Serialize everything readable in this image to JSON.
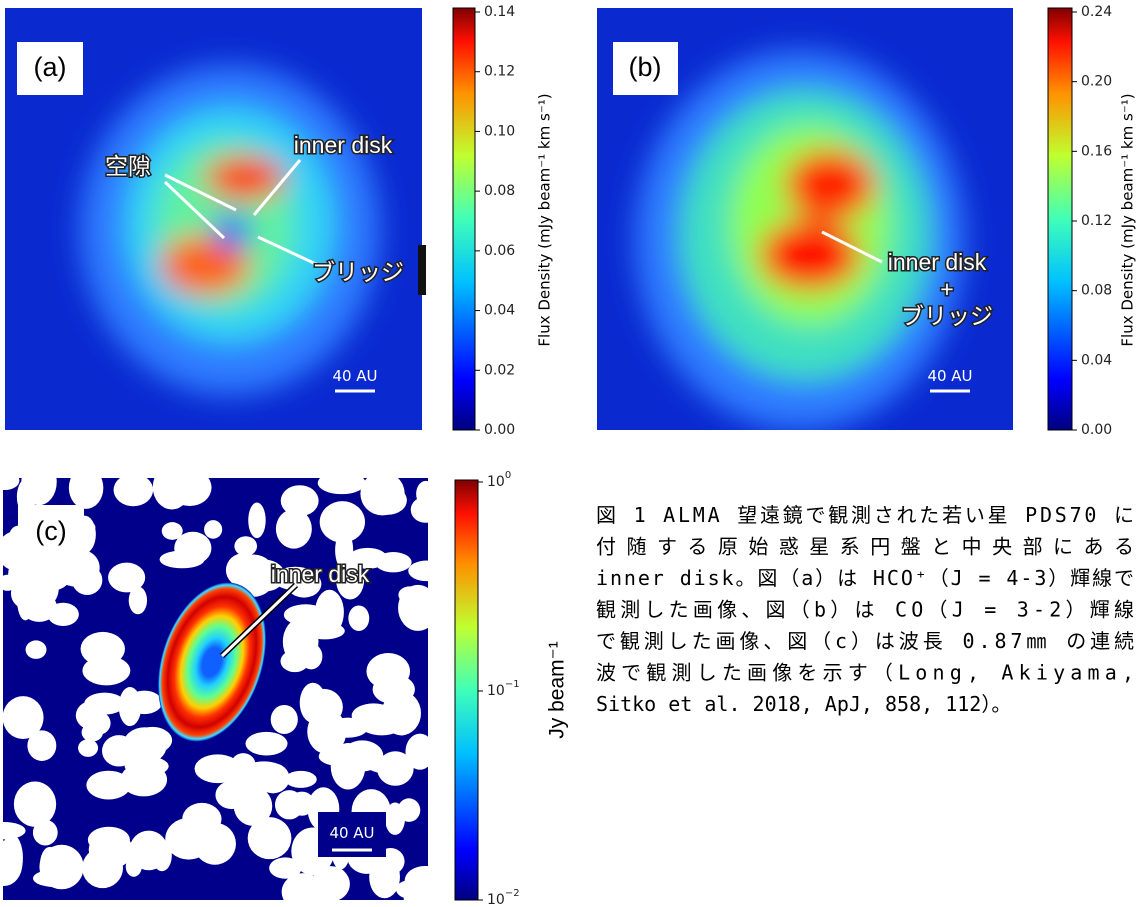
{
  "panels": [
    {
      "label": "(a)",
      "scale": "40 AU",
      "annotations": [
        "空隙",
        "inner disk",
        "ブリッジ"
      ],
      "colorbar": {
        "label": "Flux Density (mJy beam⁻¹ km s⁻¹)",
        "ticks": [
          "0.00",
          "0.02",
          "0.04",
          "0.06",
          "0.08",
          "0.10",
          "0.12",
          "0.14"
        ]
      }
    },
    {
      "label": "(b)",
      "scale": "40 AU",
      "annotations": [
        "inner disk",
        "+",
        "ブリッジ"
      ],
      "colorbar": {
        "label": "Flux Density (mJy beam⁻¹ km s⁻¹)",
        "ticks": [
          "0.00",
          "0.04",
          "0.08",
          "0.12",
          "0.16",
          "0.20",
          "0.24"
        ]
      }
    },
    {
      "label": "(c)",
      "scale": "40 AU",
      "annotations": [
        "inner disk"
      ],
      "colorbar": {
        "label": "Jy beam⁻¹",
        "ticks": [
          {
            "base": "10",
            "exp": "−2"
          },
          {
            "base": "10",
            "exp": "−1"
          },
          {
            "base": "10",
            "exp": "0"
          }
        ]
      }
    }
  ],
  "caption": [
    "図 1 ALMA 望遠鏡で観測された若い星 PDS70 に",
    "付随する原始惑星系円盤と中央部にある",
    "inner disk。図（a）は HCO⁺（J = 4-3）輝線で",
    "観測した画像、図（b）は CO（J = 3-2）輝線",
    "で観測した画像、図（c）は波長 0.87㎜ の連続",
    "波で観測した画像を示す（Long, Akiyama,",
    "Sitko et al. 2018, ApJ, 858, 112）。"
  ]
}
